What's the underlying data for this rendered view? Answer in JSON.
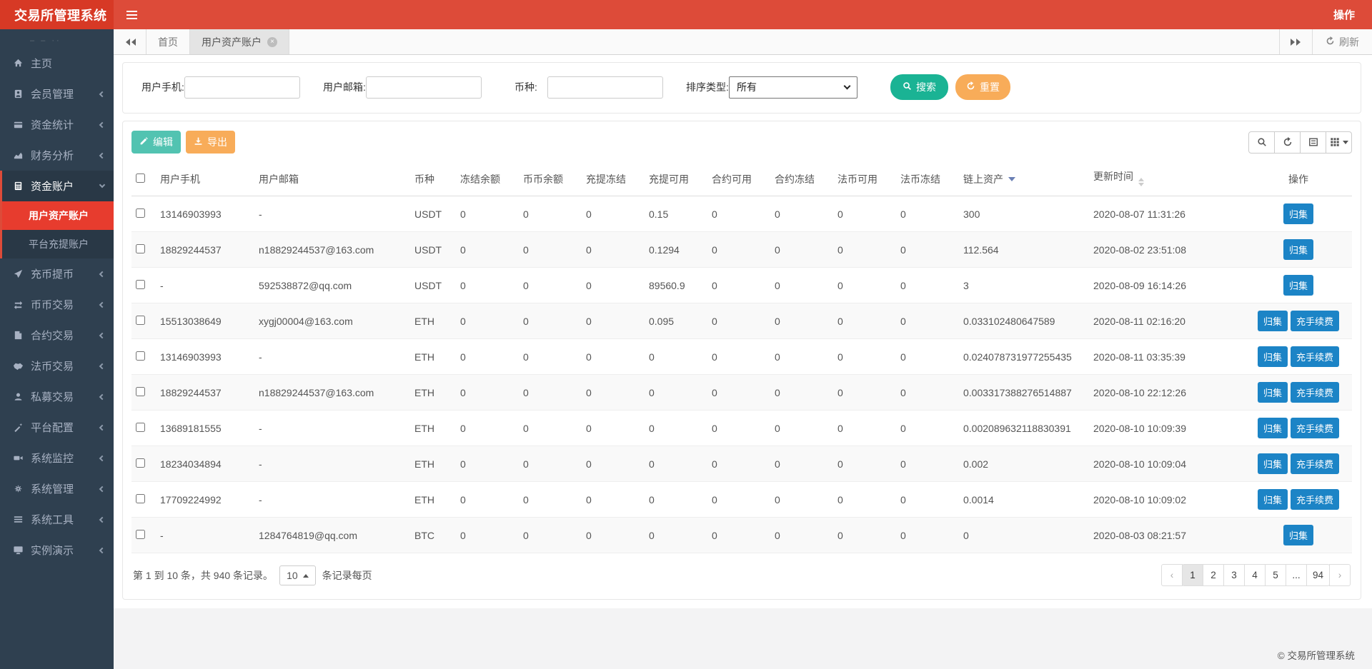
{
  "app": {
    "title": "交易所管理系统",
    "action_label": "操作"
  },
  "colors": {
    "navbar": "#dd4b39",
    "logo_bg": "#d73925",
    "sidebar": "#2f4050",
    "active_item": "#e73c2e",
    "teal": "#1ab394",
    "orange": "#f8ac59",
    "blue": "#1c84c6"
  },
  "sidebar": {
    "items": [
      {
        "label": "主页",
        "icon": "home-icon"
      },
      {
        "label": "会员管理",
        "icon": "id-badge-icon"
      },
      {
        "label": "资金统计",
        "icon": "credit-card-icon"
      },
      {
        "label": "财务分析",
        "icon": "area-chart-icon"
      },
      {
        "label": "资金账户",
        "icon": "calculator-icon",
        "expanded": true,
        "children": [
          {
            "label": "用户资产账户",
            "active": true
          },
          {
            "label": "平台充提账户"
          }
        ]
      },
      {
        "label": "充币提币",
        "icon": "paper-plane-icon"
      },
      {
        "label": "币币交易",
        "icon": "exchange-icon"
      },
      {
        "label": "合约交易",
        "icon": "contract-icon"
      },
      {
        "label": "法币交易",
        "icon": "handshake-icon"
      },
      {
        "label": "私募交易",
        "icon": "user-icon"
      },
      {
        "label": "平台配置",
        "icon": "magic-wand-icon"
      },
      {
        "label": "系统监控",
        "icon": "video-camera-icon"
      },
      {
        "label": "系统管理",
        "icon": "gear-icon"
      },
      {
        "label": "系统工具",
        "icon": "list-icon"
      },
      {
        "label": "实例演示",
        "icon": "desktop-icon"
      }
    ]
  },
  "tabs": {
    "items": [
      {
        "label": "首页"
      },
      {
        "label": "用户资产账户",
        "active": true
      }
    ],
    "refresh_label": "刷新"
  },
  "search_form": {
    "phone_label": "用户手机:",
    "email_label": "用户邮箱:",
    "coin_label": "币种:",
    "sort_label": "排序类型:",
    "sort_value": "所有",
    "search_label": "搜索",
    "reset_label": "重置"
  },
  "toolbar": {
    "edit_label": "编辑",
    "export_label": "导出"
  },
  "table": {
    "columns": [
      "用户手机",
      "用户邮箱",
      "币种",
      "冻结余额",
      "币币余额",
      "充提冻结",
      "充提可用",
      "合约可用",
      "合约冻结",
      "法币可用",
      "法币冻结",
      "链上资产",
      "更新时间",
      "操作"
    ],
    "sorted_column": "链上资产",
    "rows": [
      {
        "cells": [
          "13146903993",
          "-",
          "USDT",
          "0",
          "0",
          "0",
          "0.15",
          "0",
          "0",
          "0",
          "0",
          "300",
          "2020-08-07 11:31:26"
        ],
        "actions": [
          "归集"
        ]
      },
      {
        "cells": [
          "18829244537",
          "n18829244537@163.com",
          "USDT",
          "0",
          "0",
          "0",
          "0.1294",
          "0",
          "0",
          "0",
          "0",
          "112.564",
          "2020-08-02 23:51:08"
        ],
        "actions": [
          "归集"
        ]
      },
      {
        "cells": [
          "-",
          "592538872@qq.com",
          "USDT",
          "0",
          "0",
          "0",
          "89560.9",
          "0",
          "0",
          "0",
          "0",
          "3",
          "2020-08-09 16:14:26"
        ],
        "actions": [
          "归集"
        ]
      },
      {
        "cells": [
          "15513038649",
          "xygj00004@163.com",
          "ETH",
          "0",
          "0",
          "0",
          "0.095",
          "0",
          "0",
          "0",
          "0",
          "0.033102480647589",
          "2020-08-11 02:16:20"
        ],
        "actions": [
          "归集",
          "充手续费"
        ]
      },
      {
        "cells": [
          "13146903993",
          "-",
          "ETH",
          "0",
          "0",
          "0",
          "0",
          "0",
          "0",
          "0",
          "0",
          "0.024078731977255435",
          "2020-08-11 03:35:39"
        ],
        "actions": [
          "归集",
          "充手续费"
        ]
      },
      {
        "cells": [
          "18829244537",
          "n18829244537@163.com",
          "ETH",
          "0",
          "0",
          "0",
          "0",
          "0",
          "0",
          "0",
          "0",
          "0.003317388276514887",
          "2020-08-10 22:12:26"
        ],
        "actions": [
          "归集",
          "充手续费"
        ]
      },
      {
        "cells": [
          "13689181555",
          "-",
          "ETH",
          "0",
          "0",
          "0",
          "0",
          "0",
          "0",
          "0",
          "0",
          "0.002089632118830391",
          "2020-08-10 10:09:39"
        ],
        "actions": [
          "归集",
          "充手续费"
        ]
      },
      {
        "cells": [
          "18234034894",
          "-",
          "ETH",
          "0",
          "0",
          "0",
          "0",
          "0",
          "0",
          "0",
          "0",
          "0.002",
          "2020-08-10 10:09:04"
        ],
        "actions": [
          "归集",
          "充手续费"
        ]
      },
      {
        "cells": [
          "17709224992",
          "-",
          "ETH",
          "0",
          "0",
          "0",
          "0",
          "0",
          "0",
          "0",
          "0",
          "0.0014",
          "2020-08-10 10:09:02"
        ],
        "actions": [
          "归集",
          "充手续费"
        ]
      },
      {
        "cells": [
          "-",
          "1284764819@qq.com",
          "BTC",
          "0",
          "0",
          "0",
          "0",
          "0",
          "0",
          "0",
          "0",
          "0",
          "2020-08-03 08:21:57"
        ],
        "actions": [
          "归集"
        ]
      }
    ]
  },
  "pagination": {
    "summary": "第 1 到 10 条，共 940 条记录。",
    "page_size": "10",
    "per_page_label": "条记录每页",
    "prev": "‹",
    "next": "›",
    "pages": [
      "1",
      "2",
      "3",
      "4",
      "5",
      "...",
      "94"
    ],
    "active_page": "1"
  },
  "footer": {
    "copyright": "© 交易所管理系统"
  }
}
